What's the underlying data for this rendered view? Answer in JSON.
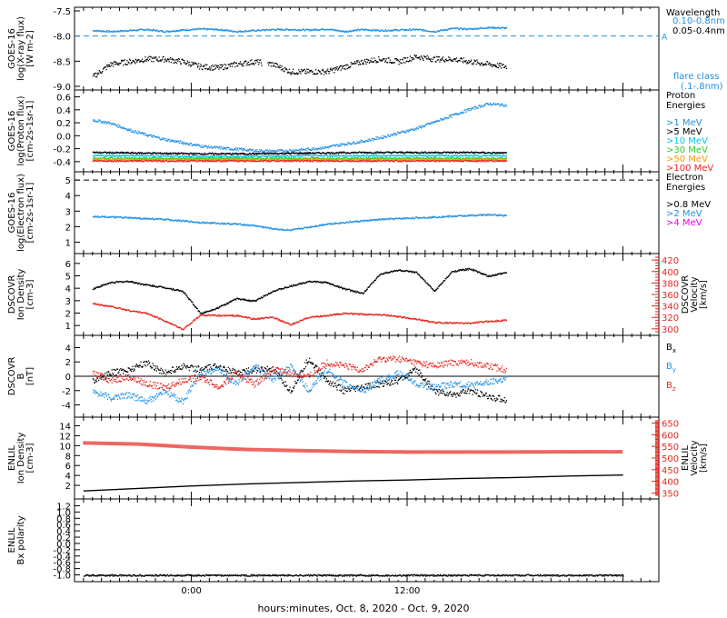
{
  "chart_data": [
    {
      "type": "scatter",
      "panel": "xray",
      "ylabel": [
        "GOES-16",
        "log(X-ray flux)",
        "[W m-2]"
      ],
      "ylim": [
        -9.0,
        -7.5
      ],
      "yticks": [
        "-7.5",
        "-8.0",
        "-8.5",
        "-9.0"
      ],
      "legend_title": "Wavelength",
      "series": [
        {
          "name": "0.10-0.8nm",
          "color": "#1f8fe6",
          "x": [
            -5.5,
            -4.5,
            -3.5,
            -2.5,
            -1.5,
            -0.5,
            0.5,
            1.5,
            2.5,
            3.5,
            4.5,
            5.5,
            6.5,
            7.5,
            8.5,
            9.5,
            10.5,
            11.5,
            12.5,
            13.5,
            14.5,
            15.5,
            16.5,
            17.5
          ],
          "y": [
            -7.88,
            -7.9,
            -7.88,
            -7.86,
            -7.9,
            -7.87,
            -7.85,
            -7.86,
            -7.9,
            -7.88,
            -7.86,
            -7.86,
            -7.87,
            -7.85,
            -7.9,
            -7.86,
            -7.88,
            -7.87,
            -7.86,
            -7.9,
            -7.84,
            -7.85,
            -7.82,
            -7.83
          ]
        },
        {
          "name": "0.05-0.4nm",
          "color": "#000000",
          "x": [
            -5.5,
            -4.5,
            -3.5,
            -2.5,
            -1.5,
            -0.5,
            0.5,
            1.5,
            2.5,
            3.5,
            4.5,
            5.5,
            6.5,
            7.5,
            8.5,
            9.5,
            10.5,
            11.5,
            12.5,
            13.5,
            14.5,
            15.5,
            16.5,
            17.5
          ],
          "y": [
            -8.8,
            -8.55,
            -8.5,
            -8.45,
            -8.45,
            -8.5,
            -8.6,
            -8.62,
            -8.55,
            -8.5,
            -8.55,
            -8.7,
            -8.7,
            -8.7,
            -8.6,
            -8.5,
            -8.45,
            -8.5,
            -8.4,
            -8.45,
            -8.45,
            -8.5,
            -8.55,
            -8.6
          ]
        }
      ],
      "reference_line": {
        "y": -8.0,
        "label": "A",
        "style": "dashed"
      },
      "annotation": {
        "text": "flare class",
        "range": "(.1-.8nm)"
      }
    },
    {
      "type": "scatter",
      "panel": "proton",
      "ylabel": [
        "GOES-16",
        "log(Proton flux)",
        "[cm-2s-1sr-1]"
      ],
      "ylim": [
        -0.5,
        0.65
      ],
      "yticks": [
        "0.6",
        "0.4",
        "0.2",
        "0.0",
        "-0.2",
        "-0.4"
      ],
      "legend_title": "Proton Energies",
      "series": [
        {
          "name": ">1 MeV",
          "color": "#1f8fe6",
          "x": [
            -5.5,
            -4.5,
            -3.5,
            -2.5,
            -1.5,
            -0.5,
            0.5,
            1.5,
            2.5,
            3.5,
            4.5,
            5.5,
            6.5,
            7.5,
            8.5,
            9.5,
            10.5,
            11.5,
            12.5,
            13.5,
            14.5,
            15.5,
            16.5,
            17.5
          ],
          "y": [
            0.25,
            0.2,
            0.1,
            0.02,
            -0.05,
            -0.1,
            -0.15,
            -0.18,
            -0.2,
            -0.22,
            -0.23,
            -0.22,
            -0.2,
            -0.17,
            -0.12,
            -0.08,
            -0.02,
            0.05,
            0.12,
            0.22,
            0.32,
            0.42,
            0.5,
            0.48
          ]
        },
        {
          "name": ">5 MeV",
          "color": "#000000",
          "x": [
            -5.5,
            -2.5,
            0.5,
            3.5,
            6.5,
            9.5,
            12.5,
            15.5,
            17.5
          ],
          "y": [
            -0.25,
            -0.26,
            -0.27,
            -0.27,
            -0.26,
            -0.25,
            -0.25,
            -0.25,
            -0.26
          ]
        },
        {
          "name": ">10 MeV",
          "color": "#00c8e6",
          "x": [
            -5.5,
            -2.5,
            0.5,
            3.5,
            6.5,
            9.5,
            12.5,
            15.5,
            17.5
          ],
          "y": [
            -0.3,
            -0.3,
            -0.31,
            -0.31,
            -0.3,
            -0.3,
            -0.3,
            -0.3,
            -0.3
          ]
        },
        {
          "name": ">30 MeV",
          "color": "#2bd02b",
          "x": [
            -5.5,
            -2.5,
            0.5,
            3.5,
            6.5,
            9.5,
            12.5,
            15.5,
            17.5
          ],
          "y": [
            -0.34,
            -0.34,
            -0.34,
            -0.34,
            -0.34,
            -0.34,
            -0.34,
            -0.34,
            -0.34
          ]
        },
        {
          "name": ">50 MeV",
          "color": "#ff9900",
          "x": [
            -5.5,
            -2.5,
            0.5,
            3.5,
            6.5,
            9.5,
            12.5,
            15.5,
            17.5
          ],
          "y": [
            -0.36,
            -0.36,
            -0.36,
            -0.36,
            -0.36,
            -0.36,
            -0.36,
            -0.36,
            -0.36
          ]
        },
        {
          "name": ">100 MeV",
          "color": "#e6261f",
          "x": [
            -5.5,
            -2.5,
            0.5,
            3.5,
            6.5,
            9.5,
            12.5,
            15.5,
            17.5
          ],
          "y": [
            -0.38,
            -0.38,
            -0.38,
            -0.38,
            -0.38,
            -0.38,
            -0.38,
            -0.38,
            -0.38
          ]
        }
      ]
    },
    {
      "type": "scatter",
      "panel": "electron",
      "ylabel": [
        "GOES-16",
        "log(Electron flux)",
        "[cm-2s-1sr-1]"
      ],
      "ylim": [
        0.5,
        5.3
      ],
      "yticks": [
        "5",
        "4",
        "3",
        "2",
        "1"
      ],
      "legend_title": "Electron Energies",
      "series": [
        {
          "name": ">0.8 MeV",
          "color": "#000000",
          "x": [],
          "y": []
        },
        {
          "name": ">2 MeV",
          "color": "#1f8fe6",
          "x": [
            -5.5,
            -4.5,
            -3.5,
            -2.5,
            -1.5,
            -0.5,
            0.5,
            1.5,
            2.5,
            3.5,
            4.5,
            5.5,
            6.5,
            7.5,
            8.5,
            9.5,
            10.5,
            11.5,
            12.5,
            13.5,
            14.5,
            15.5,
            16.5,
            17.5
          ],
          "y": [
            2.7,
            2.65,
            2.6,
            2.55,
            2.5,
            2.4,
            2.3,
            2.25,
            2.2,
            2.1,
            1.9,
            1.8,
            2.0,
            2.2,
            2.3,
            2.4,
            2.5,
            2.55,
            2.6,
            2.65,
            2.7,
            2.75,
            2.8,
            2.75
          ]
        },
        {
          "name": ">4 MeV",
          "color": "#e600e6",
          "x": [],
          "y": []
        }
      ],
      "reference_line": {
        "y": 5.0,
        "style": "dashed"
      }
    },
    {
      "type": "scatter",
      "panel": "dscovr_plasma",
      "ylabel": [
        "DSCOVR",
        "Ion Density",
        "[cm-3]"
      ],
      "ylabel_right": [
        "DSCOVR",
        "Velocity",
        "[km/s]"
      ],
      "ylim": [
        0.5,
        6.5
      ],
      "ylim_right": [
        295,
        425
      ],
      "yticks": [
        "6",
        "5",
        "4",
        "3",
        "2",
        "1"
      ],
      "yticks_right": [
        "420",
        "400",
        "380",
        "360",
        "340",
        "320",
        "300"
      ],
      "series": [
        {
          "name": "Ion Density",
          "color": "#000000",
          "axis": "left",
          "x": [
            -5.5,
            -4.5,
            -3.5,
            -2.5,
            -1.5,
            -0.5,
            0.5,
            1.5,
            2.5,
            3.5,
            4.5,
            5.5,
            6.5,
            7.5,
            8.5,
            9.5,
            10.5,
            11.5,
            12.5,
            13.5,
            14.5,
            15.5,
            16.5,
            17.5
          ],
          "y": [
            4.0,
            4.5,
            4.6,
            4.3,
            4.1,
            3.8,
            2.0,
            2.5,
            3.2,
            3.0,
            3.8,
            4.2,
            4.6,
            4.5,
            4.0,
            3.6,
            5.2,
            5.5,
            5.3,
            3.8,
            5.4,
            5.6,
            5.0,
            5.3
          ]
        },
        {
          "name": "Velocity",
          "color": "#e6261f",
          "axis": "right",
          "x": [
            -5.5,
            -4.5,
            -3.5,
            -2.5,
            -1.5,
            -0.5,
            0.5,
            1.5,
            2.5,
            3.5,
            4.5,
            5.5,
            6.5,
            7.5,
            8.5,
            9.5,
            10.5,
            11.5,
            12.5,
            13.5,
            14.5,
            15.5,
            16.5,
            17.5
          ],
          "y": [
            345,
            340,
            333,
            328,
            315,
            300,
            325,
            324,
            324,
            318,
            321,
            308,
            321,
            324,
            328,
            326,
            326,
            322,
            318,
            312,
            311,
            311,
            314,
            316
          ]
        }
      ]
    },
    {
      "type": "line",
      "panel": "dscovr_mag",
      "ylabel": [
        "DSCOVR",
        "B",
        "[nT]"
      ],
      "ylim": [
        -5.2,
        5.2
      ],
      "yticks": [
        "4",
        "2",
        "0",
        "-2",
        "-4"
      ],
      "series": [
        {
          "name": "Bx",
          "color": "#000000",
          "x": [
            -5.5,
            -4.5,
            -3.5,
            -2.5,
            -1.5,
            -0.5,
            0.5,
            1.5,
            2.5,
            3.5,
            4.5,
            5.5,
            6.5,
            7.5,
            8.5,
            9.5,
            10.5,
            11.5,
            12.5,
            13.5,
            14.5,
            15.5,
            16.5,
            17.5
          ],
          "y": [
            -0.5,
            0.5,
            1.0,
            2.0,
            0.5,
            1.5,
            1.0,
            1.5,
            0.5,
            1.0,
            1.0,
            -2.0,
            2.5,
            -0.5,
            -2.0,
            -1.5,
            -1.0,
            -0.5,
            1.0,
            -2.0,
            -2.5,
            -2.0,
            -2.8,
            -3.2
          ]
        },
        {
          "name": "By",
          "color": "#1f8fe6",
          "x": [
            -5.5,
            -4.5,
            -3.5,
            -2.5,
            -1.5,
            -0.5,
            0.5,
            1.5,
            2.5,
            3.5,
            4.5,
            5.5,
            6.5,
            7.5,
            8.5,
            9.5,
            10.5,
            11.5,
            12.5,
            13.5,
            14.5,
            15.5,
            16.5,
            17.5
          ],
          "y": [
            -2.0,
            -3.0,
            -2.5,
            -3.5,
            -2.0,
            -3.5,
            0.5,
            1.0,
            -1.0,
            1.5,
            -0.5,
            1.5,
            -2.0,
            1.0,
            -1.0,
            -2.0,
            -0.5,
            0.5,
            -1.0,
            -1.5,
            -1.0,
            -1.2,
            -0.8,
            -0.3
          ]
        },
        {
          "name": "Bz",
          "color": "#e6261f",
          "x": [
            -5.5,
            -4.5,
            -3.5,
            -2.5,
            -1.5,
            -0.5,
            0.5,
            1.5,
            2.5,
            3.5,
            4.5,
            5.5,
            6.5,
            7.5,
            8.5,
            9.5,
            10.5,
            11.5,
            12.5,
            13.5,
            14.5,
            15.5,
            16.5,
            17.5
          ],
          "y": [
            0.5,
            -0.5,
            0.0,
            -1.0,
            -1.5,
            -0.5,
            0.0,
            -1.5,
            0.5,
            -1.0,
            1.0,
            0.5,
            0.0,
            2.0,
            1.5,
            1.0,
            2.5,
            2.5,
            2.0,
            1.5,
            2.0,
            2.0,
            1.5,
            1.0
          ]
        }
      ]
    },
    {
      "type": "scatter",
      "panel": "enlil_plasma",
      "ylabel": [
        "ENLIL",
        "Ion Density",
        "[cm-3]"
      ],
      "ylabel_right": [
        "ENLIL",
        "Velocity",
        "[km/s]"
      ],
      "ylim": [
        0,
        15
      ],
      "ylim_right": [
        340,
        660
      ],
      "yticks": [
        "14",
        "12",
        "10",
        "8",
        "6",
        "4",
        "2"
      ],
      "yticks_right": [
        "650",
        "600",
        "550",
        "500",
        "450",
        "400",
        "350"
      ],
      "series": [
        {
          "name": "Ion Density",
          "color": "#000000",
          "axis": "left",
          "x": [
            -6,
            -3,
            0,
            3,
            6,
            9,
            12,
            15,
            18,
            21,
            24
          ],
          "y": [
            1.0,
            1.5,
            2.0,
            2.4,
            2.7,
            3.0,
            3.2,
            3.5,
            3.7,
            4.0,
            4.2
          ]
        },
        {
          "name": "Velocity",
          "color": "#e6261f",
          "axis": "right",
          "x": [
            -6,
            -3,
            0,
            3,
            6,
            9,
            12,
            15,
            18,
            21,
            24
          ],
          "y": [
            565,
            560,
            547,
            537,
            532,
            528,
            526,
            526,
            526,
            527,
            527
          ]
        }
      ]
    },
    {
      "type": "scatter",
      "panel": "enlil_polarity",
      "ylabel": [
        "ENLIL",
        "Bx polarity"
      ],
      "ylim": [
        -1.1,
        1.3
      ],
      "yticks": [
        "1.2",
        "1.0",
        "0.8",
        "0.6",
        "0.4",
        "0.2",
        "0.0",
        "-0.2",
        "-0.4",
        "-0.6",
        "-0.8",
        "-1.0"
      ],
      "series": [
        {
          "name": "polarity",
          "color": "#000000",
          "x": [
            -6,
            -3,
            0,
            3,
            6,
            9,
            12,
            15,
            18,
            21,
            24
          ],
          "y": [
            -1.0,
            -1.0,
            -1.0,
            -1.0,
            -1.0,
            -1.0,
            -1.0,
            -1.0,
            -1.0,
            -1.0,
            -1.0
          ]
        }
      ]
    }
  ],
  "x_axis": {
    "range_hours": [
      -6.5,
      26.0
    ],
    "tick_labels": [
      "0:00",
      "12:00"
    ],
    "tick_values": [
      0,
      12
    ],
    "xlabel": "hours:minutes, Oct.  8, 2020 - Oct.  9, 2020"
  }
}
